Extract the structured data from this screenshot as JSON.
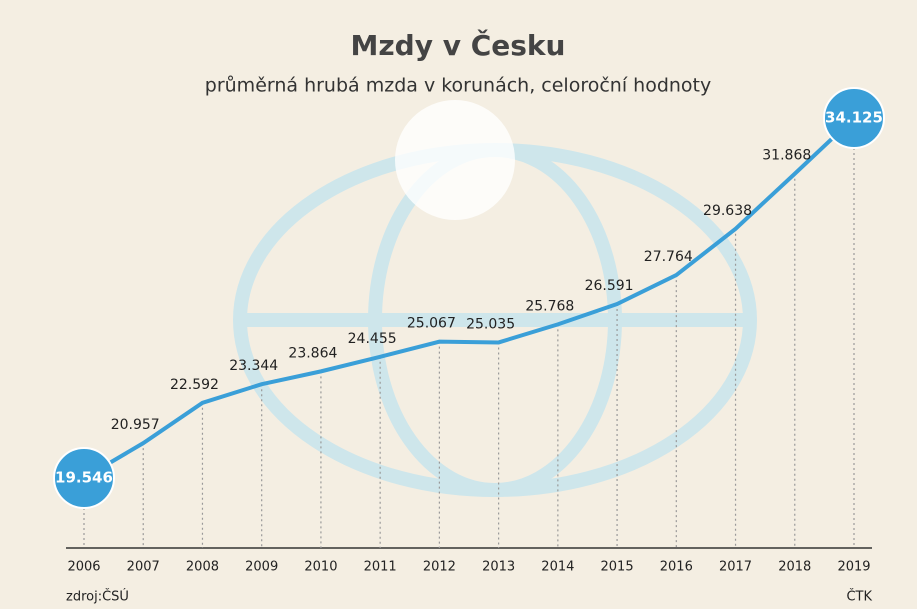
{
  "chart_data": {
    "type": "line",
    "title": "Mzdy v Česku",
    "subtitle": "průměrná hrubá mzda v korunách, celoroční hodnoty",
    "categories": [
      "2006",
      "2007",
      "2008",
      "2009",
      "2010",
      "2011",
      "2012",
      "2013",
      "2014",
      "2015",
      "2016",
      "2017",
      "2018",
      "2019"
    ],
    "series": [
      {
        "name": "průměrná hrubá mzda",
        "color": "#3a9fd8",
        "values": [
          19546,
          20957,
          22592,
          23344,
          23864,
          24455,
          25067,
          25035,
          25768,
          26591,
          27764,
          29638,
          31868,
          34125
        ],
        "value_labels": [
          "19.546",
          "20.957",
          "22.592",
          "23.344",
          "23.864",
          "24.455",
          "25.067",
          "25.035",
          "25.768",
          "26.591",
          "27.764",
          "29.638",
          "31.868",
          "34.125"
        ]
      }
    ],
    "source": "zdroj:ČSÚ",
    "credit": "ČTK"
  }
}
